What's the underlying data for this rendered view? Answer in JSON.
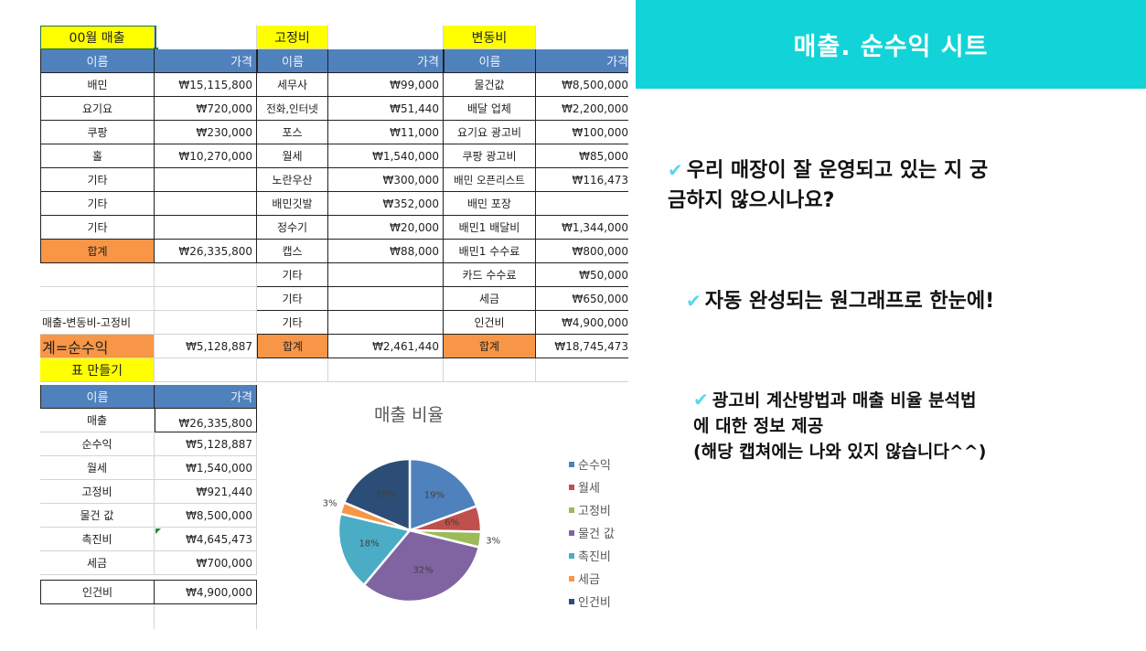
{
  "sheet": {
    "sales": {
      "title": "00월 매출",
      "headers": [
        "이름",
        "가격"
      ],
      "rows": [
        [
          "배민",
          "₩15,115,800"
        ],
        [
          "요기요",
          "₩720,000"
        ],
        [
          "쿠팡",
          "₩230,000"
        ],
        [
          "홀",
          "₩10,270,000"
        ],
        [
          "기타",
          ""
        ],
        [
          "기타",
          ""
        ],
        [
          "기타",
          ""
        ]
      ],
      "total_label": "합계",
      "total_value": "₩26,335,800",
      "formula_note": "매출-변동비-고정비",
      "net_label": "계=순수익",
      "net_value": "₩5,128,887"
    },
    "fixed": {
      "title": "고정비",
      "headers": [
        "이름",
        "가격"
      ],
      "rows": [
        [
          "세무사",
          "₩99,000"
        ],
        [
          "전화,인터넷",
          "₩51,440"
        ],
        [
          "포스",
          "₩11,000"
        ],
        [
          "월세",
          "₩1,540,000"
        ],
        [
          "노란우산",
          "₩300,000"
        ],
        [
          "배민깃발",
          "₩352,000"
        ],
        [
          "정수기",
          "₩20,000"
        ],
        [
          "캡스",
          "₩88,000"
        ],
        [
          "기타",
          ""
        ],
        [
          "기타",
          ""
        ],
        [
          "기타",
          ""
        ]
      ],
      "total_label": "합계",
      "total_value": "₩2,461,440"
    },
    "variable": {
      "title": "변동비",
      "headers": [
        "이름",
        "가격"
      ],
      "rows": [
        [
          "물건값",
          "₩8,500,000"
        ],
        [
          "배달 업체",
          "₩2,200,000"
        ],
        [
          "요기요 광고비",
          "₩100,000"
        ],
        [
          "쿠팡 광고비",
          "₩85,000"
        ],
        [
          "배민 오픈리스트",
          "₩116,473"
        ],
        [
          "배민 포장",
          ""
        ],
        [
          "배민1 배달비",
          "₩1,344,000"
        ],
        [
          "배민1 수수료",
          "₩800,000"
        ],
        [
          "카드 수수료",
          "₩50,000"
        ],
        [
          "세금",
          "₩650,000"
        ],
        [
          "인건비",
          "₩4,900,000"
        ]
      ],
      "total_label": "합계",
      "total_value": "₩18,745,473"
    },
    "summary": {
      "title": "표 만들기",
      "headers": [
        "이름",
        "가격"
      ],
      "rows": [
        [
          "매출",
          "₩26,335,800"
        ],
        [
          "순수익",
          "₩5,128,887"
        ],
        [
          "월세",
          "₩1,540,000"
        ],
        [
          "고정비",
          "₩921,440"
        ],
        [
          "물건 값",
          "₩8,500,000"
        ],
        [
          "촉진비",
          "₩4,645,473"
        ],
        [
          "세금",
          "₩700,000"
        ],
        [
          "인건비",
          "₩4,900,000"
        ]
      ]
    }
  },
  "chart_data": {
    "type": "pie",
    "title": "매출 비율",
    "categories": [
      "순수익",
      "월세",
      "고정비",
      "물건 값",
      "촉진비",
      "세금",
      "인건비"
    ],
    "values": [
      5128887,
      1540000,
      921440,
      8500000,
      4645473,
      700000,
      4900000
    ],
    "percent_labels": [
      "19%",
      "6%",
      "3%",
      "32%",
      "18%",
      "3%",
      "19%"
    ],
    "colors": [
      "#4f81bd",
      "#c0504d",
      "#9bbb59",
      "#8064a2",
      "#4bacc6",
      "#f79646",
      "#2c4d75"
    ],
    "legend_position": "right"
  },
  "panel": {
    "banner_title": "매출. 순수익 시트",
    "check_icon": "✔",
    "accent_color": "#12d4d8",
    "points": [
      {
        "line1": "우리 매장이 잘 운영되고 있는 지 궁",
        "line2": "금하지 않으시나요?"
      },
      {
        "line1": "자동 완성되는 원그래프로 한눈에!"
      },
      {
        "line1": "광고비 계산방법과 매출 비율 분석법",
        "line2": "에 대한 정보 제공",
        "line3": "(해당 캡쳐에는 나와 있지 않습니다^^)"
      }
    ]
  }
}
